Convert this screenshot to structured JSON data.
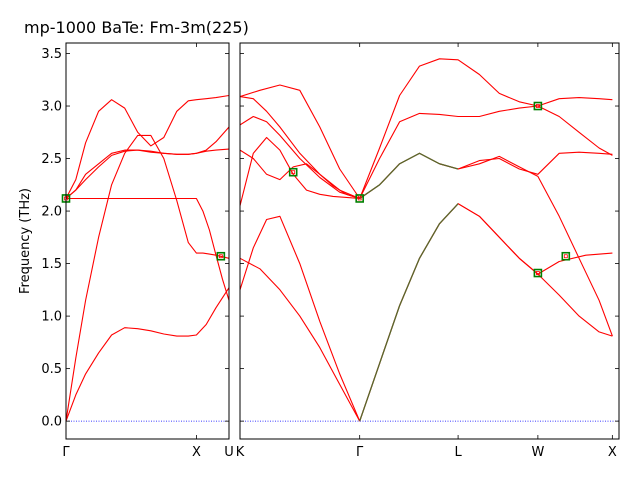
{
  "chart_data": {
    "type": "line",
    "title": "mp-1000   BaTe: Fm-3m(225)",
    "ylabel": "Frequency (THz)",
    "ylim": [
      -0.17,
      3.6
    ],
    "yticks": [
      0.0,
      0.5,
      1.0,
      1.5,
      2.0,
      2.5,
      3.0,
      3.5
    ],
    "ytick_labels": [
      "0.0",
      "0.5",
      "1.0",
      "1.5",
      "2.0",
      "2.5",
      "3.0",
      "3.5"
    ],
    "line_color": "#ff0000",
    "overlay_color": "#556b2f",
    "marker_color": "#008000",
    "zero_line_color": "#0000ff",
    "panels": [
      {
        "xlim": [
          0,
          1
        ],
        "ticks": [
          {
            "x": 0,
            "label": "Γ"
          },
          {
            "x": 0.8,
            "label": "X"
          },
          {
            "x": 1,
            "label": "U"
          }
        ],
        "bands": [
          {
            "x": [
              0,
              0.06,
              0.12,
              0.2,
              0.28,
              0.36,
              0.44,
              0.52,
              0.6,
              0.68,
              0.75,
              0.8,
              0.86,
              0.92,
              1.0
            ],
            "y": [
              0.0,
              0.25,
              0.45,
              0.65,
              0.82,
              0.89,
              0.88,
              0.86,
              0.83,
              0.81,
              0.81,
              0.82,
              0.92,
              1.08,
              1.27
            ]
          },
          {
            "x": [
              0,
              0.06,
              0.12,
              0.2,
              0.28,
              0.36,
              0.44,
              0.52,
              0.6,
              0.68,
              0.75,
              0.8,
              0.84,
              0.88,
              0.92,
              1.0
            ],
            "y": [
              0.0,
              0.6,
              1.15,
              1.75,
              2.25,
              2.55,
              2.72,
              2.72,
              2.5,
              2.1,
              1.7,
              1.6,
              1.6,
              1.59,
              1.58,
              1.55
            ]
          },
          {
            "x": [
              0,
              0.06,
              0.12,
              0.2,
              0.28,
              0.36,
              0.44,
              0.52,
              0.6,
              0.68,
              0.75,
              0.8,
              0.86,
              0.92,
              1.0
            ],
            "y": [
              2.12,
              2.2,
              2.35,
              2.45,
              2.55,
              2.58,
              2.58,
              2.57,
              2.55,
              2.54,
              2.54,
              2.55,
              2.58,
              2.66,
              2.8
            ]
          },
          {
            "x": [
              0,
              0.06,
              0.12,
              0.2,
              0.28,
              0.36,
              0.44,
              0.52,
              0.6,
              0.68,
              0.75,
              0.8,
              0.86,
              0.92,
              1.0
            ],
            "y": [
              2.12,
              2.2,
              2.3,
              2.42,
              2.53,
              2.57,
              2.58,
              2.56,
              2.55,
              2.54,
              2.54,
              2.55,
              2.57,
              2.58,
              2.59
            ]
          },
          {
            "x": [
              0,
              0.06,
              0.12,
              0.2,
              0.28,
              0.36,
              0.44,
              0.52,
              0.6,
              0.68,
              0.75,
              0.8,
              0.86,
              0.92,
              1.0
            ],
            "y": [
              2.12,
              2.3,
              2.65,
              2.95,
              3.06,
              2.98,
              2.75,
              2.62,
              2.7,
              2.95,
              3.05,
              3.06,
              3.07,
              3.08,
              3.1
            ]
          },
          {
            "x": [
              0,
              0.8,
              0.84,
              0.88,
              0.92,
              0.96,
              1.0
            ],
            "y": [
              2.12,
              2.12,
              2.0,
              1.82,
              1.58,
              1.35,
              1.15
            ]
          }
        ],
        "markers": [
          {
            "x": 0,
            "y": 2.12
          },
          {
            "x": 0.95,
            "y": 1.57
          }
        ]
      },
      {
        "xlim": [
          0,
          2.85
        ],
        "ticks": [
          {
            "x": 0,
            "label": "K"
          },
          {
            "x": 0.9,
            "label": "Γ"
          },
          {
            "x": 1.64,
            "label": "L"
          },
          {
            "x": 2.24,
            "label": "W"
          },
          {
            "x": 2.8,
            "label": "X"
          }
        ],
        "bands": [
          {
            "x": [
              0,
              0.15,
              0.3,
              0.45,
              0.6,
              0.75,
              0.9
            ],
            "y": [
              1.55,
              1.45,
              1.25,
              1.0,
              0.7,
              0.35,
              0.0
            ]
          },
          {
            "x": [
              0,
              0.1,
              0.2,
              0.3,
              0.45,
              0.6,
              0.75,
              0.9
            ],
            "y": [
              1.25,
              1.65,
              1.92,
              1.95,
              1.5,
              0.95,
              0.45,
              0.0
            ]
          },
          {
            "x": [
              0.9,
              1.05,
              1.2,
              1.35,
              1.5,
              1.64,
              1.8,
              1.95,
              2.1,
              2.24,
              2.4,
              2.55,
              2.7,
              2.8
            ],
            "y": [
              0.0,
              0.55,
              1.1,
              1.55,
              1.88,
              2.07,
              1.95,
              1.75,
              1.55,
              1.4,
              1.2,
              1.0,
              0.85,
              0.81
            ]
          },
          {
            "x": [
              0.9,
              1.05,
              1.2,
              1.35,
              1.5,
              1.64,
              1.8,
              1.95,
              2.1,
              2.24,
              2.4,
              2.6,
              2.8
            ],
            "y": [
              0.0,
              0.55,
              1.1,
              1.55,
              1.88,
              2.07,
              1.95,
              1.75,
              1.55,
              1.4,
              1.52,
              1.58,
              1.6
            ]
          },
          {
            "x": [
              0,
              0.1,
              0.2,
              0.3,
              0.4,
              0.5,
              0.6,
              0.7,
              0.8,
              0.9,
              1.05,
              1.2,
              1.35,
              1.5,
              1.64,
              1.8,
              1.95,
              2.1,
              2.24,
              2.4,
              2.55,
              2.7,
              2.8
            ],
            "y": [
              2.05,
              2.55,
              2.7,
              2.58,
              2.35,
              2.2,
              2.16,
              2.14,
              2.13,
              2.12,
              2.25,
              2.45,
              2.55,
              2.45,
              2.4,
              2.45,
              2.52,
              2.42,
              2.33,
              1.95,
              1.55,
              1.15,
              0.81
            ]
          },
          {
            "x": [
              0,
              0.1,
              0.2,
              0.3,
              0.4,
              0.5,
              0.6,
              0.7,
              0.8,
              0.9,
              1.05,
              1.2,
              1.35,
              1.5,
              1.64,
              1.8,
              1.95,
              2.1,
              2.24,
              2.4,
              2.55,
              2.7,
              2.8
            ],
            "y": [
              2.58,
              2.5,
              2.35,
              2.3,
              2.42,
              2.45,
              2.35,
              2.24,
              2.16,
              2.12,
              2.25,
              2.45,
              2.55,
              2.45,
              2.4,
              2.48,
              2.5,
              2.4,
              2.35,
              2.55,
              2.56,
              2.55,
              2.54
            ]
          },
          {
            "x": [
              0,
              0.1,
              0.2,
              0.3,
              0.45,
              0.6,
              0.75,
              0.9,
              1.05,
              1.2,
              1.35,
              1.5,
              1.64,
              1.8,
              1.95,
              2.1,
              2.24,
              2.4,
              2.55,
              2.7,
              2.8
            ],
            "y": [
              2.82,
              2.9,
              2.85,
              2.72,
              2.5,
              2.32,
              2.18,
              2.12,
              2.5,
              2.85,
              2.93,
              2.92,
              2.9,
              2.9,
              2.95,
              2.98,
              3.0,
              2.9,
              2.75,
              2.6,
              2.53
            ]
          },
          {
            "x": [
              0,
              0.1,
              0.2,
              0.3,
              0.45,
              0.6,
              0.75,
              0.9,
              1.05,
              1.2,
              1.35,
              1.5,
              1.64,
              1.8,
              1.95,
              2.1,
              2.24,
              2.4,
              2.55,
              2.7,
              2.8
            ],
            "y": [
              3.09,
              3.07,
              2.95,
              2.8,
              2.55,
              2.35,
              2.2,
              2.12,
              2.6,
              3.1,
              3.38,
              3.45,
              3.44,
              3.3,
              3.12,
              3.04,
              3.0,
              3.07,
              3.08,
              3.07,
              3.06
            ]
          },
          {
            "x": [
              0,
              0.15,
              0.3,
              0.45,
              0.6,
              0.75,
              0.9
            ],
            "y": [
              3.09,
              3.15,
              3.2,
              3.15,
              2.8,
              2.4,
              2.12
            ]
          }
        ],
        "overlays": [
          {
            "x": [
              0.9,
              1.05,
              1.2,
              1.35,
              1.5,
              1.64
            ],
            "y": [
              0.0,
              0.55,
              1.1,
              1.55,
              1.88,
              2.07
            ]
          },
          {
            "x": [
              0.9,
              1.05,
              1.2,
              1.35,
              1.5,
              1.64
            ],
            "y": [
              2.12,
              2.25,
              2.45,
              2.55,
              2.45,
              2.4
            ]
          }
        ],
        "markers": [
          {
            "x": 0.4,
            "y": 2.37
          },
          {
            "x": 0.9,
            "y": 2.12
          },
          {
            "x": 2.24,
            "y": 3.0
          },
          {
            "x": 2.24,
            "y": 1.41
          },
          {
            "x": 2.45,
            "y": 1.57
          }
        ]
      }
    ]
  }
}
